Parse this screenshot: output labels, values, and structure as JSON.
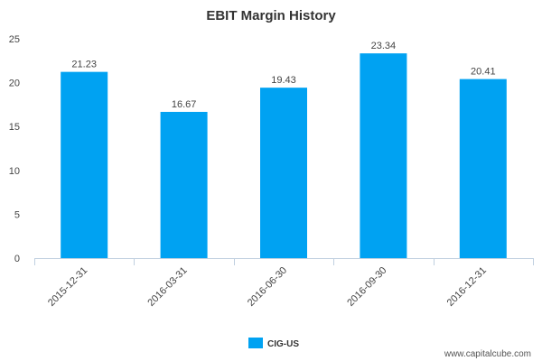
{
  "chart_data": {
    "type": "bar",
    "title": "EBIT Margin History",
    "xlabel": "",
    "ylabel": "",
    "categories": [
      "2015-12-31",
      "2016-03-31",
      "2016-06-30",
      "2016-09-30",
      "2016-12-31"
    ],
    "series": [
      {
        "name": "CIG-US",
        "values": [
          21.23,
          16.67,
          19.43,
          23.34,
          20.41
        ],
        "color": "#00a2f2"
      }
    ],
    "data_labels": [
      "21.23",
      "16.67",
      "19.43",
      "23.34",
      "20.41"
    ],
    "ylim": [
      0,
      25
    ],
    "yticks": [
      0,
      5,
      10,
      15,
      20,
      25
    ],
    "grid": false,
    "legend": "bottom-center"
  },
  "watermark": "www.capitalcube.com"
}
